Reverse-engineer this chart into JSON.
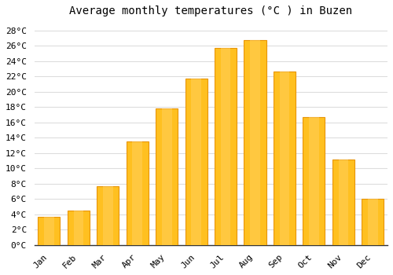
{
  "months": [
    "Jan",
    "Feb",
    "Mar",
    "Apr",
    "May",
    "Jun",
    "Jul",
    "Aug",
    "Sep",
    "Oct",
    "Nov",
    "Dec"
  ],
  "temperatures": [
    3.7,
    4.5,
    7.7,
    13.5,
    17.8,
    21.7,
    25.7,
    26.7,
    22.7,
    16.7,
    11.2,
    6.0
  ],
  "bar_color": "#FFC020",
  "bar_edge_color": "#E8950A",
  "title": "Average monthly temperatures (°C ) in Buzen",
  "ylim": [
    0,
    29
  ],
  "ytick_step": 2,
  "background_color": "#FFFFFF",
  "plot_bg_color": "#FFFFFF",
  "grid_color": "#DDDDDD",
  "title_fontsize": 10,
  "tick_fontsize": 8,
  "font_family": "monospace"
}
